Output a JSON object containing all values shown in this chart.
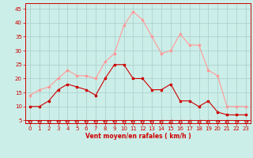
{
  "x": [
    0,
    1,
    2,
    3,
    4,
    5,
    6,
    7,
    8,
    9,
    10,
    11,
    12,
    13,
    14,
    15,
    16,
    17,
    18,
    19,
    20,
    21,
    22,
    23
  ],
  "vent_moyen": [
    10,
    10,
    12,
    16,
    18,
    17,
    16,
    14,
    20,
    25,
    25,
    20,
    20,
    16,
    16,
    18,
    12,
    12,
    10,
    12,
    8,
    7,
    7,
    7
  ],
  "rafales": [
    14,
    16,
    17,
    20,
    23,
    21,
    21,
    20,
    26,
    29,
    39,
    44,
    41,
    35,
    29,
    30,
    36,
    32,
    32,
    23,
    21,
    10,
    10,
    10
  ],
  "bg_color": "#cceee8",
  "grid_color": "#aacccc",
  "line_moyen_color": "#cc0000",
  "line_rafales_color": "#ff9999",
  "xlabel": "Vent moyen/en rafales ( km/h )",
  "ylim": [
    4,
    47
  ],
  "xlim": [
    -0.5,
    23.5
  ],
  "yticks": [
    5,
    10,
    15,
    20,
    25,
    30,
    35,
    40,
    45
  ],
  "xticks": [
    0,
    1,
    2,
    3,
    4,
    5,
    6,
    7,
    8,
    9,
    10,
    11,
    12,
    13,
    14,
    15,
    16,
    17,
    18,
    19,
    20,
    21,
    22,
    23
  ]
}
